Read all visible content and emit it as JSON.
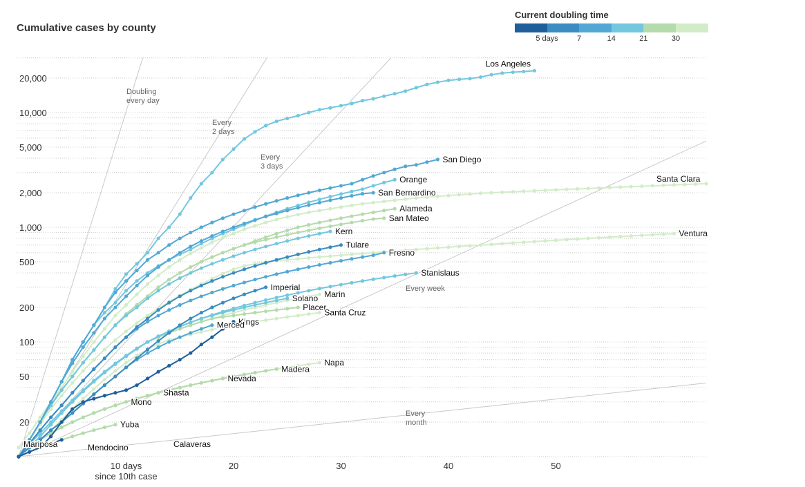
{
  "chart_data": {
    "type": "line",
    "title": "Cumulative cases by county",
    "xlabel": "since 10th case",
    "x_tick_labels": [
      {
        "x": 10,
        "label": "10 days"
      },
      {
        "x": 20,
        "label": "20"
      },
      {
        "x": 30,
        "label": "30"
      },
      {
        "x": 40,
        "label": "40"
      },
      {
        "x": 50,
        "label": "50"
      }
    ],
    "y_scale": "log",
    "ylim": [
      10,
      30000
    ],
    "xlim": [
      0,
      64
    ],
    "y_tick_labels": [
      {
        "y": 20,
        "label": "20"
      },
      {
        "y": 50,
        "label": "50"
      },
      {
        "y": 100,
        "label": "100"
      },
      {
        "y": 200,
        "label": "200"
      },
      {
        "y": 500,
        "label": "500"
      },
      {
        "y": 1000,
        "label": "1,000"
      },
      {
        "y": 2000,
        "label": "2,000"
      },
      {
        "y": 5000,
        "label": "5,000"
      },
      {
        "y": 10000,
        "label": "10,000"
      },
      {
        "y": 20000,
        "label": "20,000"
      }
    ],
    "reference_lines": [
      {
        "doubling_days": 1,
        "label": "Doubling every day"
      },
      {
        "doubling_days": 2,
        "label": "Every 2 days"
      },
      {
        "doubling_days": 3,
        "label": "Every 3 days"
      },
      {
        "doubling_days": 7,
        "label": "Every week"
      },
      {
        "doubling_days": 30,
        "label": "Every month"
      }
    ],
    "legend": {
      "title": "Current doubling time",
      "colors": [
        "#1f5e9a",
        "#3a8cc1",
        "#52a8d4",
        "#73c7df",
        "#b4dbab",
        "#d3ecc8"
      ],
      "tick_labels": [
        "5 days",
        "7",
        "14",
        "21",
        "30"
      ]
    },
    "series": [
      {
        "name": "Los Angeles",
        "color": "#73c7df",
        "values": [
          10,
          14,
          20,
          30,
          45,
          70,
          100,
          140,
          200,
          290,
          390,
          480,
          600,
          800,
          1000,
          1300,
          1800,
          2400,
          3000,
          3900,
          4800,
          5900,
          6800,
          7700,
          8400,
          8900,
          9400,
          10000,
          10600,
          11000,
          11500,
          12000,
          12700,
          13200,
          13900,
          14600,
          15400,
          16500,
          17600,
          18400,
          19100,
          19500,
          19800,
          20400,
          21400,
          22100,
          22500,
          22800,
          23200
        ]
      },
      {
        "name": "San Diego",
        "color": "#52a8d4",
        "values": [
          10,
          14,
          20,
          30,
          45,
          70,
          100,
          140,
          200,
          270,
          340,
          420,
          520,
          600,
          700,
          800,
          900,
          1000,
          1100,
          1200,
          1300,
          1400,
          1500,
          1600,
          1700,
          1800,
          1900,
          2000,
          2100,
          2200,
          2300,
          2400,
          2600,
          2800,
          3000,
          3200,
          3400,
          3500,
          3700,
          3900
        ]
      },
      {
        "name": "Orange",
        "color": "#73c7df",
        "values": [
          10,
          14,
          20,
          30,
          45,
          70,
          100,
          140,
          180,
          220,
          280,
          340,
          400,
          460,
          520,
          580,
          640,
          720,
          800,
          880,
          960,
          1050,
          1150,
          1250,
          1350,
          1450,
          1550,
          1650,
          1750,
          1850,
          1950,
          2050,
          2150,
          2300,
          2450,
          2600
        ]
      },
      {
        "name": "Santa Clara",
        "color": "#d3ecc8",
        "values": [
          12,
          16,
          22,
          30,
          40,
          55,
          75,
          100,
          130,
          170,
          210,
          260,
          320,
          380,
          450,
          520,
          590,
          660,
          740,
          810,
          880,
          960,
          1030,
          1100,
          1170,
          1230,
          1290,
          1350,
          1400,
          1450,
          1500,
          1550,
          1600,
          1640,
          1680,
          1720,
          1760,
          1800,
          1830,
          1860,
          1890,
          1920,
          1950,
          1980,
          2000,
          2020,
          2040,
          2060,
          2080,
          2100,
          2120,
          2140,
          2160,
          2180,
          2200,
          2220,
          2240,
          2260,
          2280,
          2300,
          2320,
          2340,
          2360,
          2380,
          2400
        ]
      },
      {
        "name": "Alameda",
        "color": "#b4dbab",
        "values": [
          10,
          14,
          20,
          28,
          38,
          50,
          66,
          85,
          110,
          140,
          175,
          210,
          250,
          300,
          350,
          400,
          450,
          500,
          550,
          600,
          650,
          700,
          760,
          820,
          880,
          940,
          1000,
          1050,
          1100,
          1150,
          1200,
          1250,
          1300,
          1350,
          1400,
          1450
        ]
      },
      {
        "name": "San Bernardino",
        "color": "#52a8d4",
        "values": [
          10,
          14,
          20,
          30,
          45,
          65,
          90,
          120,
          160,
          200,
          250,
          310,
          380,
          450,
          520,
          600,
          680,
          760,
          840,
          920,
          1000,
          1080,
          1160,
          1240,
          1320,
          1400,
          1480,
          1560,
          1640,
          1720,
          1800,
          1880,
          1960,
          2000
        ]
      },
      {
        "name": "San Mateo",
        "color": "#b4dbab",
        "values": [
          10,
          14,
          20,
          28,
          38,
          50,
          66,
          85,
          110,
          140,
          175,
          210,
          250,
          300,
          350,
          400,
          450,
          500,
          550,
          600,
          650,
          700,
          740,
          780,
          820,
          860,
          900,
          940,
          980,
          1020,
          1060,
          1100,
          1140,
          1180,
          1200
        ]
      },
      {
        "name": "Kern",
        "color": "#73c7df",
        "values": [
          10,
          14,
          20,
          28,
          38,
          50,
          66,
          85,
          110,
          140,
          170,
          200,
          240,
          280,
          320,
          360,
          400,
          440,
          480,
          520,
          560,
          600,
          640,
          680,
          720,
          760,
          800,
          840,
          880,
          920
        ]
      },
      {
        "name": "Tulare",
        "color": "#3a8cc1",
        "values": [
          10,
          13,
          17,
          22,
          28,
          36,
          46,
          58,
          72,
          90,
          110,
          135,
          160,
          190,
          220,
          250,
          280,
          310,
          340,
          370,
          400,
          430,
          460,
          490,
          520,
          550,
          580,
          610,
          640,
          670,
          700
        ]
      },
      {
        "name": "Fresno",
        "color": "#52a8d4",
        "values": [
          10,
          13,
          17,
          22,
          28,
          36,
          46,
          58,
          72,
          90,
          110,
          130,
          150,
          170,
          190,
          210,
          230,
          250,
          270,
          290,
          310,
          330,
          350,
          370,
          390,
          410,
          430,
          450,
          470,
          490,
          510,
          530,
          550,
          570,
          600
        ]
      },
      {
        "name": "Ventura",
        "color": "#d3ecc8",
        "values": [
          10,
          14,
          19,
          26,
          34,
          44,
          56,
          70,
          86,
          104,
          124,
          146,
          170,
          196,
          224,
          254,
          286,
          320,
          356,
          394,
          430,
          460,
          480,
          500,
          510,
          520,
          530,
          540,
          550,
          560,
          570,
          580,
          590,
          600,
          610,
          620,
          630,
          640,
          650,
          660,
          670,
          680,
          690,
          700,
          710,
          720,
          730,
          740,
          750,
          760,
          770,
          780,
          790,
          800,
          810,
          820,
          830,
          840,
          850,
          860,
          870,
          880
        ]
      },
      {
        "name": "Stanislaus",
        "color": "#73c7df",
        "values": [
          10,
          13,
          16,
          20,
          25,
          31,
          38,
          46,
          55,
          65,
          76,
          88,
          100,
          112,
          124,
          136,
          148,
          160,
          172,
          184,
          196,
          208,
          220,
          232,
          244,
          256,
          268,
          280,
          292,
          304,
          316,
          328,
          340,
          352,
          364,
          376,
          388,
          400
        ]
      },
      {
        "name": "Imperial",
        "color": "#3a8cc1",
        "values": [
          10,
          12,
          14,
          17,
          20,
          24,
          29,
          35,
          42,
          50,
          60,
          72,
          86,
          102,
          120,
          140,
          160,
          180,
          200,
          220,
          240,
          260,
          280,
          300
        ]
      },
      {
        "name": "Solano",
        "color": "#73c7df",
        "values": [
          10,
          12,
          15,
          19,
          24,
          30,
          37,
          45,
          54,
          64,
          75,
          87,
          100,
          112,
          124,
          136,
          148,
          160,
          170,
          180,
          190,
          200,
          210,
          220,
          230,
          240
        ]
      },
      {
        "name": "Marin",
        "color": "#d3ecc8",
        "values": [
          10,
          12,
          15,
          19,
          24,
          30,
          37,
          45,
          54,
          64,
          75,
          87,
          100,
          110,
          120,
          130,
          140,
          150,
          160,
          170,
          180,
          190,
          200,
          210,
          220,
          230,
          240,
          250,
          260
        ]
      },
      {
        "name": "Kings",
        "color": "#1f5e9a",
        "values": [
          10,
          11,
          12,
          15,
          20,
          26,
          30,
          32,
          34,
          36,
          38,
          42,
          48,
          55,
          62,
          70,
          80,
          95,
          110,
          130,
          150
        ]
      },
      {
        "name": "Placer",
        "color": "#b4dbab",
        "values": [
          10,
          12,
          15,
          19,
          24,
          30,
          37,
          45,
          54,
          64,
          75,
          87,
          100,
          110,
          120,
          130,
          140,
          150,
          160,
          165,
          170,
          175,
          180,
          185,
          190,
          195,
          200
        ]
      },
      {
        "name": "Merced",
        "color": "#52a8d4",
        "values": [
          10,
          12,
          14,
          17,
          20,
          24,
          29,
          35,
          42,
          50,
          60,
          70,
          80,
          90,
          100,
          110,
          120,
          130,
          140
        ]
      },
      {
        "name": "Santa Cruz",
        "color": "#d3ecc8",
        "values": [
          10,
          12,
          14,
          17,
          21,
          26,
          32,
          39,
          47,
          56,
          66,
          76,
          86,
          96,
          104,
          110,
          116,
          122,
          128,
          134,
          140,
          145,
          150,
          155,
          160,
          165,
          170,
          175,
          180
        ]
      },
      {
        "name": "Napa",
        "color": "#d3ecc8",
        "values": [
          10,
          12,
          14,
          16,
          18,
          20,
          22,
          24,
          26,
          28,
          30,
          32,
          34,
          36,
          38,
          40,
          42,
          44,
          46,
          48,
          50,
          52,
          54,
          56,
          58,
          60,
          62,
          64,
          66
        ]
      },
      {
        "name": "Madera",
        "color": "#b4dbab",
        "values": [
          10,
          12,
          14,
          16,
          18,
          20,
          22,
          24,
          26,
          28,
          30,
          32,
          34,
          36,
          38,
          40,
          42,
          44,
          46,
          48,
          50,
          52,
          54,
          56,
          58
        ]
      },
      {
        "name": "Nevada",
        "color": "#b4dbab",
        "values": [
          10,
          12,
          14,
          16,
          18,
          20,
          22,
          24,
          26,
          28,
          30,
          32,
          34,
          36,
          38,
          40,
          42,
          44,
          46,
          48
        ]
      },
      {
        "name": "Shasta",
        "color": "#d3ecc8",
        "values": [
          10,
          12,
          14,
          16,
          18,
          20,
          22,
          24,
          26,
          28,
          30,
          32,
          34,
          36
        ]
      },
      {
        "name": "Mono",
        "color": "#d3ecc8",
        "values": [
          10,
          12,
          14,
          16,
          18,
          20,
          22,
          24,
          26,
          28,
          30
        ]
      },
      {
        "name": "Yuba",
        "color": "#b4dbab",
        "values": [
          10,
          11,
          12,
          13,
          14,
          15,
          16,
          17,
          18,
          19
        ]
      },
      {
        "name": "Calaveras",
        "color": "#d3ecc8",
        "values": [
          10,
          11,
          12,
          13,
          14,
          15,
          16
        ]
      },
      {
        "name": "Mendocino",
        "color": "#d3ecc8",
        "values": [
          10,
          11,
          12,
          13
        ]
      },
      {
        "name": "Mariposa",
        "color": "#1f5e9a",
        "values": [
          10,
          11,
          12,
          13,
          14
        ]
      }
    ]
  }
}
